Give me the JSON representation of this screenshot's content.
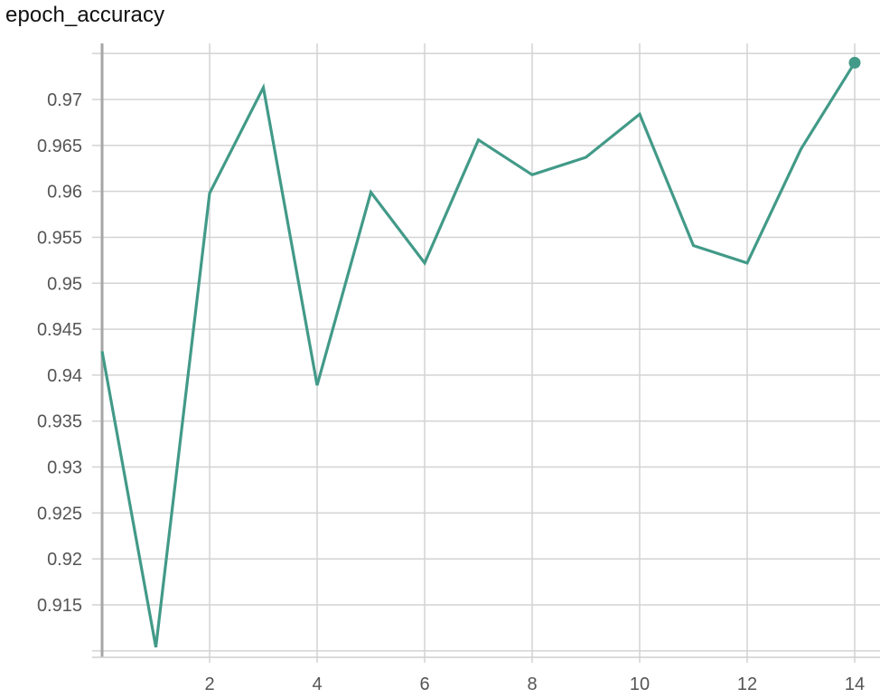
{
  "chart_data": {
    "type": "line",
    "title": "epoch_accuracy",
    "xlabel": "",
    "ylabel": "",
    "x": [
      0,
      1,
      2,
      3,
      4,
      5,
      6,
      7,
      8,
      9,
      10,
      11,
      12,
      13,
      14
    ],
    "series": [
      {
        "values": [
          0.9426,
          0.9104,
          0.9598,
          0.9713,
          0.9389,
          0.9599,
          0.9522,
          0.9656,
          0.9618,
          0.9637,
          0.9684,
          0.9541,
          0.9522,
          0.9646,
          0.974
        ],
        "color": "#429a88"
      }
    ],
    "x_ticks": [
      "2",
      "4",
      "6",
      "8",
      "10",
      "12",
      "14"
    ],
    "y_ticks": [
      "0.915",
      "0.92",
      "0.925",
      "0.93",
      "0.935",
      "0.94",
      "0.945",
      "0.95",
      "0.955",
      "0.96",
      "0.965",
      "0.97"
    ],
    "xlim": [
      0,
      14
    ],
    "ylim": [
      0.91,
      0.975
    ],
    "grid": true,
    "last_point_marker": true
  }
}
